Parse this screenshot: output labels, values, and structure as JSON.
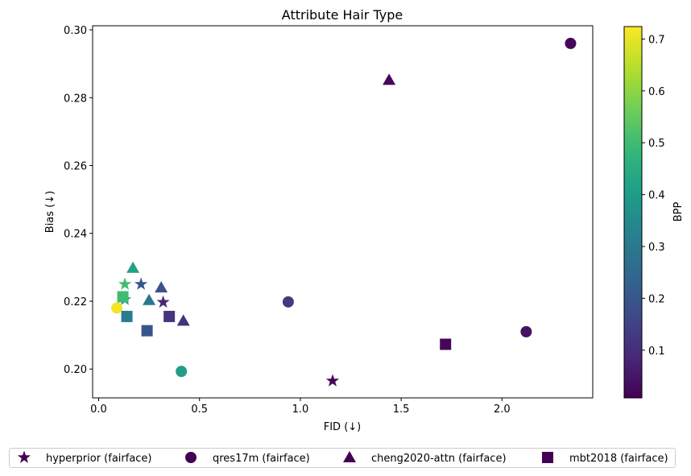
{
  "chart_data": {
    "type": "scatter",
    "title": "Attribute Hair Type",
    "xlabel": "FID (↓)",
    "ylabel": "Bias (↓)",
    "xlim": [
      -0.03,
      2.45
    ],
    "ylim": [
      0.1915,
      0.3012
    ],
    "xticks": [
      0.0,
      0.5,
      1.0,
      1.5,
      2.0
    ],
    "xtick_labels": [
      "0.0",
      "0.5",
      "1.0",
      "1.5",
      "2.0"
    ],
    "yticks": [
      0.2,
      0.22,
      0.24,
      0.26,
      0.28,
      0.3
    ],
    "ytick_labels": [
      "0.20",
      "0.22",
      "0.24",
      "0.26",
      "0.28",
      "0.30"
    ],
    "grid": false,
    "colorbar": {
      "label": "BPP",
      "colormap": "viridis",
      "min": 0.008,
      "max": 0.724,
      "ticks": [
        0.1,
        0.2,
        0.3,
        0.4,
        0.5,
        0.6,
        0.7
      ],
      "tick_labels": [
        "0.1",
        "0.2",
        "0.3",
        "0.4",
        "0.5",
        "0.6",
        "0.7"
      ]
    },
    "legend_position": "bottom-center",
    "series": [
      {
        "name": "hyperprior (fairface)",
        "marker": "star",
        "points": [
          {
            "x": 1.16,
            "y": 0.1965,
            "bpp": 0.02
          },
          {
            "x": 0.32,
            "y": 0.2197,
            "bpp": 0.09
          },
          {
            "x": 0.21,
            "y": 0.225,
            "bpp": 0.2
          },
          {
            "x": 0.13,
            "y": 0.2205,
            "bpp": 0.36
          },
          {
            "x": 0.13,
            "y": 0.225,
            "bpp": 0.5
          }
        ]
      },
      {
        "name": "qres17m (fairface)",
        "marker": "circle",
        "points": [
          {
            "x": 2.34,
            "y": 0.296,
            "bpp": 0.02
          },
          {
            "x": 2.12,
            "y": 0.211,
            "bpp": 0.04
          },
          {
            "x": 0.94,
            "y": 0.2198,
            "bpp": 0.13
          },
          {
            "x": 0.41,
            "y": 0.1993,
            "bpp": 0.4
          },
          {
            "x": 0.09,
            "y": 0.218,
            "bpp": 0.71
          }
        ]
      },
      {
        "name": "cheng2020-attn (fairface)",
        "marker": "triangle",
        "points": [
          {
            "x": 1.44,
            "y": 0.2852,
            "bpp": 0.02
          },
          {
            "x": 0.42,
            "y": 0.2142,
            "bpp": 0.11
          },
          {
            "x": 0.31,
            "y": 0.224,
            "bpp": 0.19
          },
          {
            "x": 0.25,
            "y": 0.2203,
            "bpp": 0.29
          },
          {
            "x": 0.17,
            "y": 0.2298,
            "bpp": 0.42
          }
        ]
      },
      {
        "name": "mbt2018 (fairface)",
        "marker": "square",
        "points": [
          {
            "x": 1.72,
            "y": 0.2073,
            "bpp": 0.02
          },
          {
            "x": 0.35,
            "y": 0.2155,
            "bpp": 0.12
          },
          {
            "x": 0.24,
            "y": 0.2113,
            "bpp": 0.2
          },
          {
            "x": 0.14,
            "y": 0.2155,
            "bpp": 0.31
          },
          {
            "x": 0.12,
            "y": 0.2213,
            "bpp": 0.5
          }
        ]
      }
    ]
  }
}
